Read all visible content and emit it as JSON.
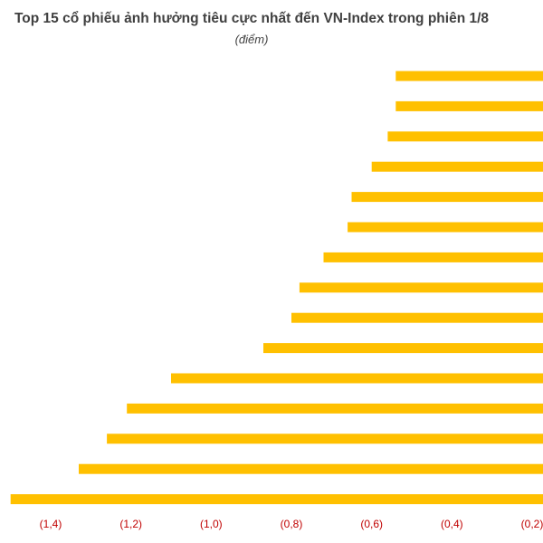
{
  "chart_data": {
    "type": "bar",
    "orientation": "horizontal",
    "title": "Top 15 cổ phiếu ảnh hưởng tiêu cực nhất đến VN-Index trong phiên 1/8",
    "subtitle": "(điểm)",
    "xlabel": "",
    "ylabel": "",
    "xlim": [
      -1.5,
      -0.2
    ],
    "x_ticks": [
      -1.4,
      -1.2,
      -1.0,
      -0.8,
      -0.6,
      -0.4,
      -0.2
    ],
    "x_tick_labels": [
      "(1,4)",
      "(1,2)",
      "(1,0)",
      "(0,8)",
      "(0,6)",
      "(0,4)",
      "(0,2)"
    ],
    "grid": false,
    "legend": "none",
    "bar_color": "#ffc000",
    "tick_label_color": "#c00000",
    "title_color": "#404040",
    "values": [
      -0.54,
      -0.54,
      -0.56,
      -0.6,
      -0.65,
      -0.66,
      -0.72,
      -0.78,
      -0.8,
      -0.87,
      -1.1,
      -1.21,
      -1.26,
      -1.33,
      -1.5
    ]
  }
}
